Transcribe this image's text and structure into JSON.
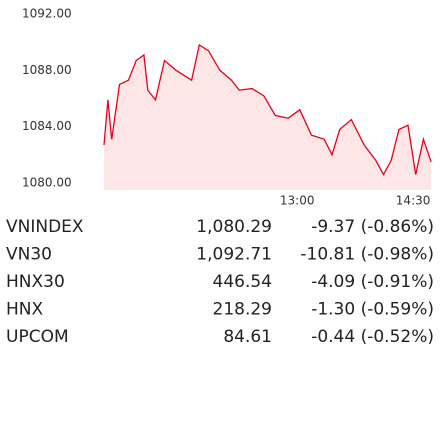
{
  "chart_data": {
    "type": "line",
    "color": "#e8001c",
    "fill": "#fde6e6",
    "x": [
      0,
      3,
      6,
      12,
      19,
      25,
      31,
      34,
      40,
      47,
      56,
      68,
      74,
      81,
      90,
      99,
      105,
      115,
      124,
      133,
      143,
      152,
      161,
      171,
      177,
      183,
      192,
      202,
      211,
      217,
      223,
      229,
      236,
      242,
      248,
      254
    ],
    "values": [
      1082.7,
      1085.9,
      1083.1,
      1087.0,
      1087.3,
      1088.7,
      1089.1,
      1086.6,
      1085.9,
      1088.7,
      1088.0,
      1087.3,
      1089.8,
      1089.4,
      1088.0,
      1087.3,
      1086.6,
      1086.7,
      1086.2,
      1084.8,
      1084.6,
      1085.2,
      1083.4,
      1083.1,
      1082.0,
      1083.8,
      1084.5,
      1082.7,
      1081.6,
      1080.6,
      1081.6,
      1083.8,
      1084.1,
      1080.6,
      1083.1,
      1081.5
    ],
    "xlim": [
      -7,
      257
    ],
    "xticks": [
      {
        "value": 150,
        "label": "13:00"
      },
      {
        "value": 240,
        "label": "14:30"
      }
    ],
    "ylim": [
      1079.5,
      1092.5
    ],
    "yticks": [
      {
        "value": 1092,
        "label": "1092.00"
      },
      {
        "value": 1088,
        "label": "1088.00"
      },
      {
        "value": 1084,
        "label": "1084.00"
      },
      {
        "value": 1080,
        "label": "1080.00"
      }
    ]
  },
  "table": {
    "rows": [
      [
        "VNINDEX",
        "1,080.29",
        "-9.37 (-0.86%)"
      ],
      [
        "VN30",
        "1,092.71",
        "-10.81 (-0.98%)"
      ],
      [
        "HNX30",
        "446.54",
        "-4.09 (-0.91%)"
      ],
      [
        "HNX",
        "218.29",
        "-1.30 (-0.59%)"
      ],
      [
        "UPCOM",
        "84.61",
        "-0.44 (-0.52%)"
      ]
    ]
  }
}
